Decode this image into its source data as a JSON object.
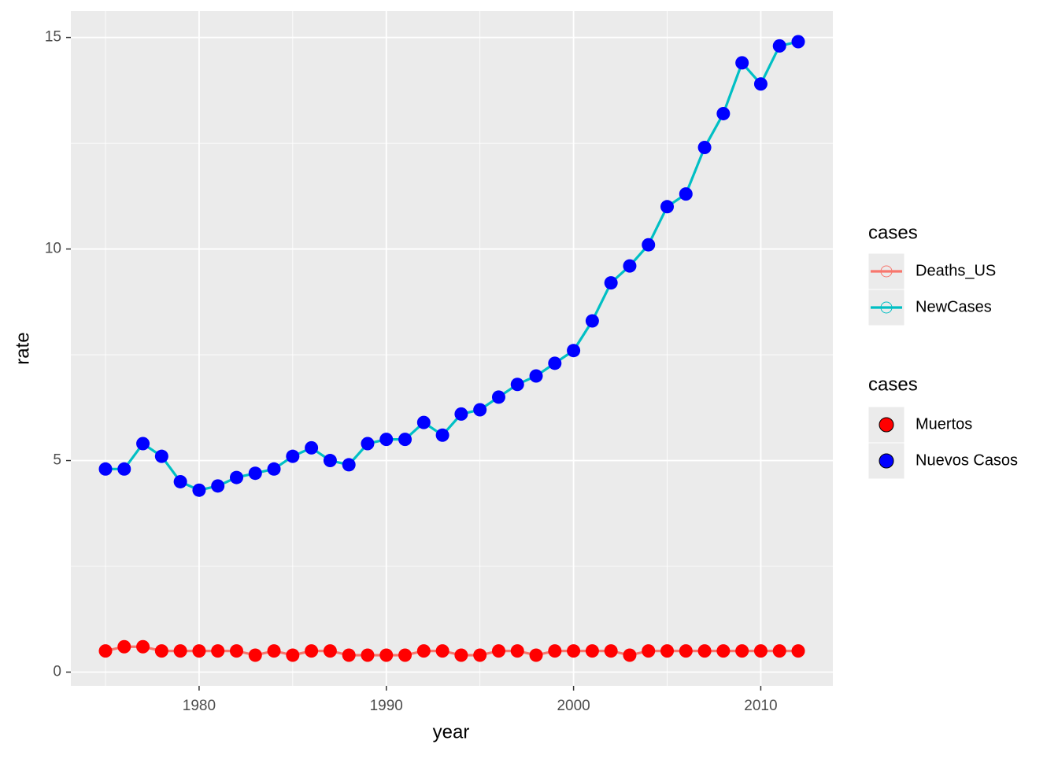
{
  "chart_data": {
    "type": "line",
    "x_label": "year",
    "y_label": "rate",
    "x": [
      1975,
      1976,
      1977,
      1978,
      1979,
      1980,
      1981,
      1982,
      1983,
      1984,
      1985,
      1986,
      1987,
      1988,
      1989,
      1990,
      1991,
      1992,
      1993,
      1994,
      1995,
      1996,
      1997,
      1998,
      1999,
      2000,
      2001,
      2002,
      2003,
      2004,
      2005,
      2006,
      2007,
      2008,
      2009,
      2010,
      2011,
      2012
    ],
    "series": [
      {
        "name": "Deaths_US",
        "color": "#F8766D",
        "point_name": "Muertos",
        "point_color": "#FF0000",
        "values": [
          0.5,
          0.6,
          0.6,
          0.5,
          0.5,
          0.5,
          0.5,
          0.5,
          0.4,
          0.5,
          0.4,
          0.5,
          0.5,
          0.4,
          0.4,
          0.4,
          0.4,
          0.5,
          0.5,
          0.4,
          0.4,
          0.5,
          0.5,
          0.4,
          0.5,
          0.5,
          0.5,
          0.5,
          0.4,
          0.5,
          0.5,
          0.5,
          0.5,
          0.5,
          0.5,
          0.5,
          0.5,
          0.5
        ]
      },
      {
        "name": "NewCases",
        "color": "#00BFC4",
        "point_name": "Nuevos Casos",
        "point_color": "#0000FF",
        "values": [
          4.8,
          4.8,
          5.4,
          5.1,
          4.5,
          4.3,
          4.4,
          4.6,
          4.7,
          4.8,
          5.1,
          5.3,
          5.0,
          4.9,
          5.4,
          5.5,
          5.5,
          5.9,
          5.6,
          6.1,
          6.2,
          6.5,
          6.8,
          7.0,
          7.3,
          7.6,
          8.3,
          9.2,
          9.6,
          10.1,
          11.0,
          11.3,
          12.4,
          13.2,
          14.4,
          13.9,
          14.8,
          14.9
        ]
      }
    ],
    "legend_titles": [
      "cases",
      "cases"
    ],
    "xlim": [
      1973.15,
      2013.85
    ],
    "xticks": [
      1980,
      1990,
      2000,
      2010
    ],
    "x_minor_grid": [
      1975,
      1985,
      1995,
      2005
    ],
    "ylim": [
      -0.325,
      15.625
    ],
    "yticks": [
      0,
      5,
      10,
      15
    ],
    "y_minor_grid": [
      2.5,
      7.5,
      12.5
    ],
    "grid": true
  }
}
